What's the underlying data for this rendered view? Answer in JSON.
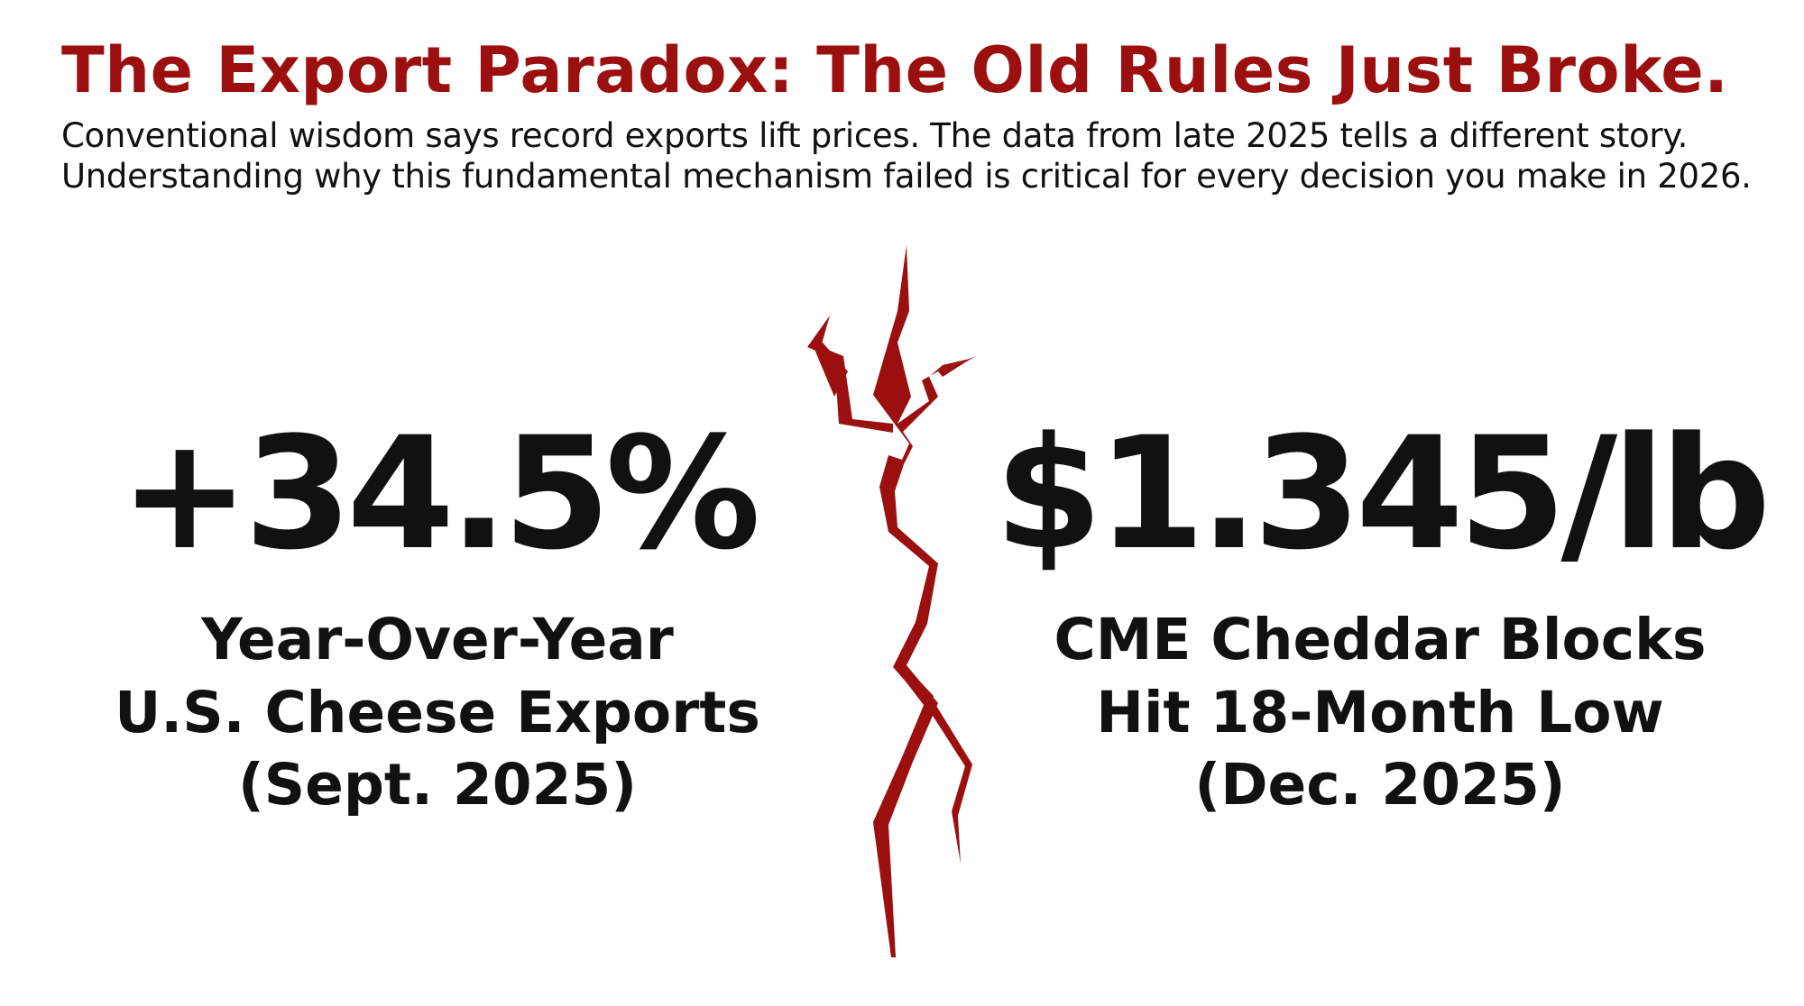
{
  "header": {
    "title": "The Export Paradox: The Old Rules Just Broke.",
    "subtitle_line1": "Conventional wisdom says record exports lift prices. The data from late 2025 tells a different story.",
    "subtitle_line2": "Understanding why this fundamental mechanism failed is critical for every decision you make in 2026."
  },
  "left_stat": {
    "value": "+34.5%",
    "caption_line1": "Year-Over-Year",
    "caption_line2": "U.S. Cheese Exports",
    "caption_line3": "(Sept. 2025)"
  },
  "right_stat": {
    "value": "$1.345/lb",
    "caption_line1": "CME Cheddar Blocks",
    "caption_line2": "Hit 18-Month Low",
    "caption_line3": "(Dec. 2025)"
  },
  "colors": {
    "accent": "#9b0f0f",
    "text": "#111111",
    "background": "#ffffff"
  },
  "icons": {
    "divider": "crack-icon"
  }
}
